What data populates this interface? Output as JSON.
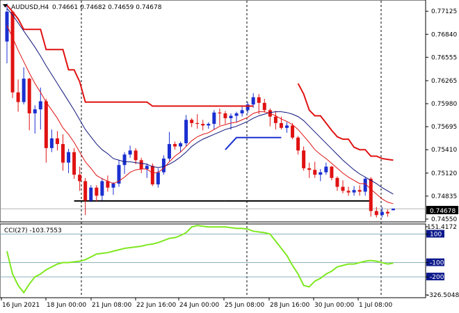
{
  "header": {
    "symbol": "AUDUSD,H4",
    "ohlc": "0.74661 0.74682 0.74659 0.74678"
  },
  "main_price_axis": [
    "0.77125",
    "0.76840",
    "0.76555",
    "0.76265",
    "0.75980",
    "0.75695",
    "0.75410",
    "0.75120",
    "0.74835",
    "0.74550"
  ],
  "current_price_label": "0.74678",
  "indicator": {
    "title": "CCI(27) -103.7553",
    "axis_labels": [
      "151.4172",
      "100",
      "-100",
      "-200",
      "-326.5048"
    ]
  },
  "time_axis": [
    "16 Jun 2021",
    "18 Jun 00:00",
    "21 Jun 08:00",
    "22 Jun 16:00",
    "24 Jun 00:00",
    "25 Jun 08:00",
    "28 Jun 16:00",
    "30 Jun 00:00",
    "1 Jul 08:00"
  ],
  "colors": {
    "bull": "#1a2fd0",
    "bear": "#e01212",
    "ma_fast": "#e01212",
    "ma_slow": "#0d147a",
    "cci_line": "#7ee81f",
    "level_line": "#000000",
    "support_blue": "#1a2fd0",
    "axis_bg": "#000000",
    "highlight_bg": "#0d1a8c"
  },
  "chart_data": {
    "type": "candlestick",
    "series": [
      {
        "name": "candles",
        "ohlc": [
          [
            0.7675,
            0.7722,
            0.7648,
            0.7712
          ],
          [
            0.7712,
            0.7713,
            0.7605,
            0.7612
          ],
          [
            0.7612,
            0.7628,
            0.7588,
            0.76
          ],
          [
            0.76,
            0.7643,
            0.7597,
            0.7629
          ],
          [
            0.7629,
            0.763,
            0.7565,
            0.7586
          ],
          [
            0.7586,
            0.7596,
            0.7561,
            0.7591
          ],
          [
            0.7591,
            0.7618,
            0.7566,
            0.7601
          ],
          [
            0.7601,
            0.7604,
            0.7525,
            0.7543
          ],
          [
            0.7543,
            0.7566,
            0.7538,
            0.7555
          ],
          [
            0.7555,
            0.7564,
            0.754,
            0.7548
          ],
          [
            0.7548,
            0.756,
            0.7515,
            0.7525
          ],
          [
            0.7525,
            0.7542,
            0.7512,
            0.7538
          ],
          [
            0.7538,
            0.7543,
            0.7505,
            0.751
          ],
          [
            0.751,
            0.752,
            0.749,
            0.7502
          ],
          [
            0.7502,
            0.7506,
            0.746,
            0.7478
          ],
          [
            0.7478,
            0.7497,
            0.7476,
            0.7494
          ],
          [
            0.7494,
            0.7497,
            0.7477,
            0.7484
          ],
          [
            0.7484,
            0.7506,
            0.7478,
            0.7502
          ],
          [
            0.7502,
            0.7509,
            0.7489,
            0.7494
          ],
          [
            0.7494,
            0.7501,
            0.7485,
            0.7499
          ],
          [
            0.7499,
            0.7528,
            0.7495,
            0.7522
          ],
          [
            0.7522,
            0.7538,
            0.7511,
            0.7535
          ],
          [
            0.7535,
            0.7546,
            0.7531,
            0.754
          ],
          [
            0.754,
            0.7543,
            0.7523,
            0.7528
          ],
          [
            0.7528,
            0.7531,
            0.7512,
            0.7517
          ],
          [
            0.7517,
            0.7524,
            0.7506,
            0.7521
          ],
          [
            0.7521,
            0.7524,
            0.7496,
            0.7498
          ],
          [
            0.7498,
            0.7518,
            0.7494,
            0.7513
          ],
          [
            0.7513,
            0.7534,
            0.751,
            0.753
          ],
          [
            0.753,
            0.7563,
            0.7527,
            0.7548
          ],
          [
            0.7548,
            0.7551,
            0.7541,
            0.7545
          ],
          [
            0.7545,
            0.7551,
            0.7538,
            0.7549
          ],
          [
            0.7549,
            0.7584,
            0.7545,
            0.7578
          ],
          [
            0.7578,
            0.758,
            0.7569,
            0.7574
          ],
          [
            0.7574,
            0.7585,
            0.7567,
            0.7573
          ],
          [
            0.7573,
            0.7578,
            0.7565,
            0.7571
          ],
          [
            0.7571,
            0.7575,
            0.7567,
            0.7573
          ],
          [
            0.7573,
            0.759,
            0.7566,
            0.7587
          ],
          [
            0.7587,
            0.7592,
            0.7571,
            0.7586
          ],
          [
            0.7586,
            0.7589,
            0.7573,
            0.758
          ],
          [
            0.758,
            0.7586,
            0.7566,
            0.7583
          ],
          [
            0.7583,
            0.7588,
            0.7575,
            0.7586
          ],
          [
            0.7586,
            0.7596,
            0.7582,
            0.759
          ],
          [
            0.759,
            0.76,
            0.7586,
            0.7597
          ],
          [
            0.7597,
            0.7611,
            0.7593,
            0.7606
          ],
          [
            0.7606,
            0.761,
            0.7585,
            0.7599
          ],
          [
            0.7599,
            0.7604,
            0.7587,
            0.759
          ],
          [
            0.759,
            0.7592,
            0.757,
            0.7582
          ],
          [
            0.7582,
            0.7589,
            0.7566,
            0.7574
          ],
          [
            0.7574,
            0.7582,
            0.7566,
            0.7568
          ],
          [
            0.7568,
            0.7575,
            0.7562,
            0.7571
          ],
          [
            0.7571,
            0.7574,
            0.7554,
            0.7556
          ],
          [
            0.7556,
            0.7558,
            0.7535,
            0.754
          ],
          [
            0.754,
            0.7545,
            0.7515,
            0.7518
          ],
          [
            0.7518,
            0.7525,
            0.7506,
            0.7516
          ],
          [
            0.7516,
            0.7526,
            0.7506,
            0.751
          ],
          [
            0.751,
            0.7517,
            0.7502,
            0.7513
          ],
          [
            0.7513,
            0.7525,
            0.751,
            0.752
          ],
          [
            0.752,
            0.7521,
            0.7503,
            0.7506
          ],
          [
            0.7506,
            0.7508,
            0.749,
            0.7495
          ],
          [
            0.7495,
            0.7503,
            0.7487,
            0.749
          ],
          [
            0.749,
            0.7495,
            0.7484,
            0.7488
          ],
          [
            0.7488,
            0.7496,
            0.7484,
            0.7491
          ],
          [
            0.7491,
            0.7497,
            0.7484,
            0.7489
          ],
          [
            0.7489,
            0.7507,
            0.7484,
            0.7505
          ],
          [
            0.7505,
            0.7507,
            0.7458,
            0.7465
          ],
          [
            0.7465,
            0.747,
            0.7457,
            0.746
          ],
          [
            0.746,
            0.747,
            0.7457,
            0.7464
          ],
          [
            0.7464,
            0.7467,
            0.7458,
            0.7462
          ],
          [
            0.7466,
            0.7468,
            0.7466,
            0.7468
          ]
        ]
      },
      {
        "name": "ma_fast",
        "values": [
          0.7695,
          0.768,
          0.7664,
          0.765,
          0.7636,
          0.7623,
          0.7612,
          0.76,
          0.759,
          0.758,
          0.7568,
          0.756,
          0.755,
          0.7538,
          0.7526,
          0.7518,
          0.7509,
          0.7505,
          0.7502,
          0.7499,
          0.7502,
          0.7507,
          0.7513,
          0.7516,
          0.7517,
          0.7517,
          0.7512,
          0.7513,
          0.7518,
          0.7526,
          0.7533,
          0.7538,
          0.7545,
          0.7552,
          0.7557,
          0.756,
          0.7562,
          0.7566,
          0.757,
          0.7572,
          0.7574,
          0.7575,
          0.7578,
          0.7581,
          0.7586,
          0.7588,
          0.7588,
          0.7586,
          0.7583,
          0.7579,
          0.7576,
          0.7572,
          0.7566,
          0.7558,
          0.755,
          0.7541,
          0.7535,
          0.753,
          0.7524,
          0.7518,
          0.7512,
          0.7507,
          0.7503,
          0.7499,
          0.7499,
          0.7492,
          0.7486,
          0.748,
          0.7476,
          0.7474
        ]
      },
      {
        "name": "ma_slow",
        "values": [
          0.7716,
          0.7708,
          0.7698,
          0.7688,
          0.7678,
          0.7668,
          0.7657,
          0.7645,
          0.7634,
          0.7623,
          0.7612,
          0.7601,
          0.759,
          0.7578,
          0.7566,
          0.7557,
          0.7548,
          0.7541,
          0.7536,
          0.753,
          0.7528,
          0.7526,
          0.7526,
          0.7525,
          0.7524,
          0.7523,
          0.752,
          0.7519,
          0.752,
          0.7523,
          0.7527,
          0.7532,
          0.7538,
          0.7545,
          0.755,
          0.7554,
          0.7557,
          0.756,
          0.7563,
          0.7566,
          0.7568,
          0.757,
          0.7573,
          0.7576,
          0.758,
          0.7583,
          0.7585,
          0.7587,
          0.7588,
          0.7588,
          0.7587,
          0.7585,
          0.7582,
          0.7577,
          0.757,
          0.7563,
          0.7556,
          0.7549,
          0.7542,
          0.7535,
          0.7528,
          0.7522,
          0.7516,
          0.7511,
          0.7507,
          0.7503,
          0.7499,
          0.7494,
          0.749,
          0.7486
        ]
      },
      {
        "name": "upper_band",
        "values": [
          0.772,
          0.7712,
          0.7703,
          0.769,
          0.769,
          0.769,
          0.769,
          0.7665,
          0.7665,
          0.7665,
          0.7665,
          0.764,
          0.764,
          0.7625,
          0.76,
          0.76,
          0.76,
          0.76,
          0.76,
          0.76,
          0.76,
          0.76,
          0.76,
          0.76,
          0.76,
          0.76,
          0.7595,
          0.7595,
          0.7595,
          0.7595,
          0.7595,
          0.7595,
          0.7595,
          0.7595,
          0.7595,
          0.7595,
          0.7595,
          0.7595,
          0.7595,
          0.7595,
          0.7595,
          0.7595,
          0.7595,
          0.7595,
          0.7595,
          null,
          null,
          null,
          null,
          null,
          null,
          null,
          0.7623,
          0.761,
          0.759,
          0.7583,
          0.7583,
          0.7574,
          0.7565,
          0.7557,
          0.7554,
          0.7554,
          0.7544,
          0.7541,
          0.7541,
          0.7533,
          0.7533,
          0.753,
          0.7529,
          0.7528
        ]
      },
      {
        "name": "cci",
        "values": [
          -20,
          -180,
          -260,
          -310,
          -250,
          -200,
          -180,
          -150,
          -130,
          -110,
          -100,
          -100,
          -95,
          -90,
          -80,
          -60,
          -40,
          -35,
          -30,
          -20,
          -10,
          0,
          5,
          10,
          15,
          25,
          30,
          40,
          55,
          70,
          75,
          90,
          110,
          150,
          160,
          155,
          150,
          150,
          150,
          150,
          145,
          140,
          140,
          135,
          120,
          115,
          110,
          100,
          50,
          0,
          -50,
          -120,
          -180,
          -260,
          -270,
          -230,
          -210,
          -180,
          -160,
          -130,
          -120,
          -110,
          -110,
          -100,
          -90,
          -85,
          -90,
          -100,
          -110,
          -104
        ]
      }
    ],
    "level_lines": [
      0.7478,
      0.7478
    ],
    "cci_levels": [
      100,
      -100,
      -200
    ],
    "ylim": [
      0.7455,
      0.7723
    ],
    "cci_ylim": [
      -326.5048,
      151.4172
    ]
  }
}
